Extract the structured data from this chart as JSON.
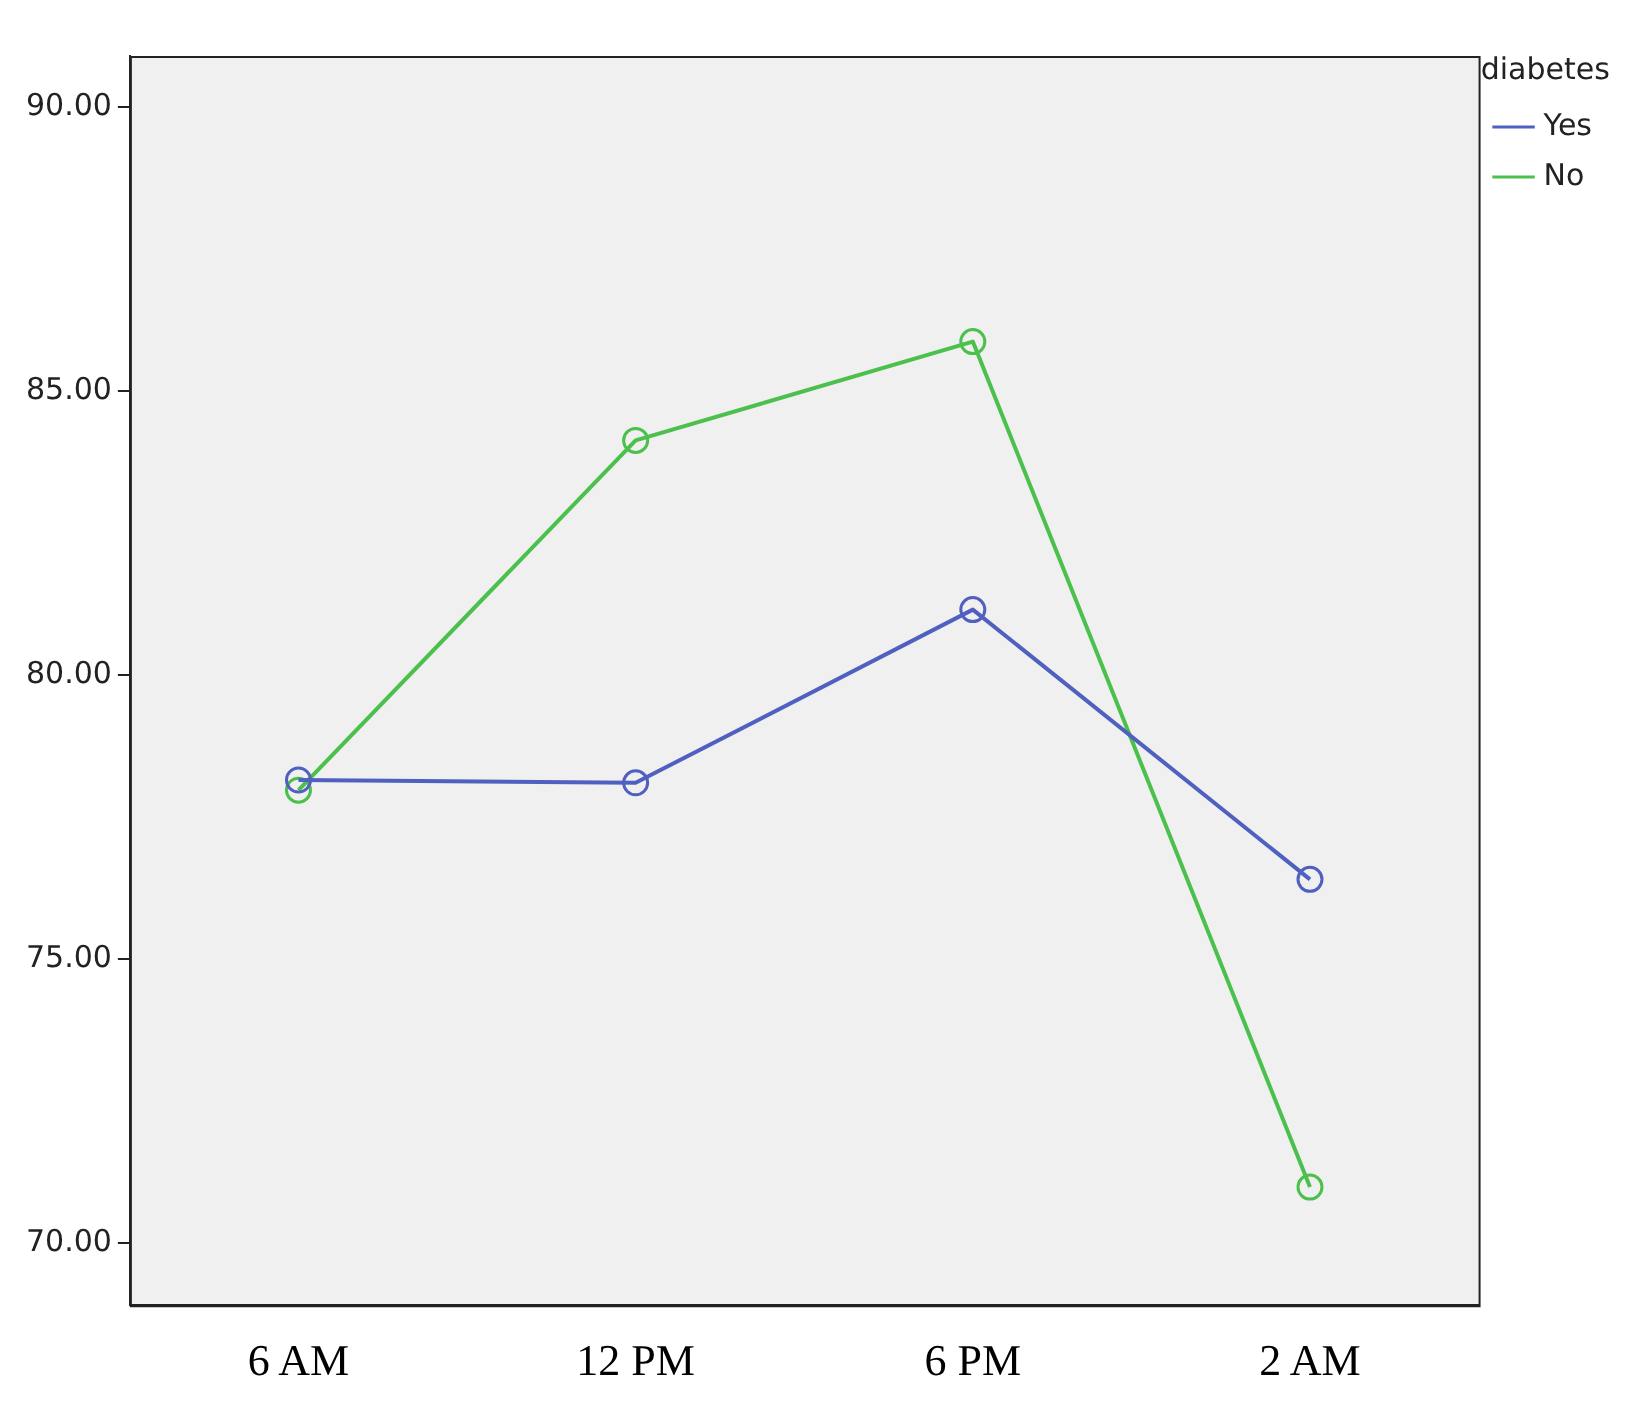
{
  "chart_data": {
    "type": "line",
    "legend_title": "diabetes",
    "categories": [
      "6 AM",
      "12 PM",
      "6 PM",
      "2 AM"
    ],
    "series": [
      {
        "name": "Yes",
        "color": "#5060c0",
        "values": [
          78.15,
          78.1,
          81.15,
          76.4
        ]
      },
      {
        "name": "No",
        "color": "#4cc04c",
        "values": [
          77.97,
          84.13,
          85.87,
          70.98
        ]
      }
    ],
    "ylim": [
      68.9,
      90.9
    ],
    "yticks": [
      {
        "value": 70,
        "label": "70.00"
      },
      {
        "value": 75,
        "label": "75.00"
      },
      {
        "value": 80,
        "label": "80.00"
      },
      {
        "value": 85,
        "label": "85.00"
      },
      {
        "value": 90,
        "label": "90.00"
      }
    ],
    "grid": false,
    "legend": "top right",
    "marker": "circle",
    "line_style": "solid"
  }
}
